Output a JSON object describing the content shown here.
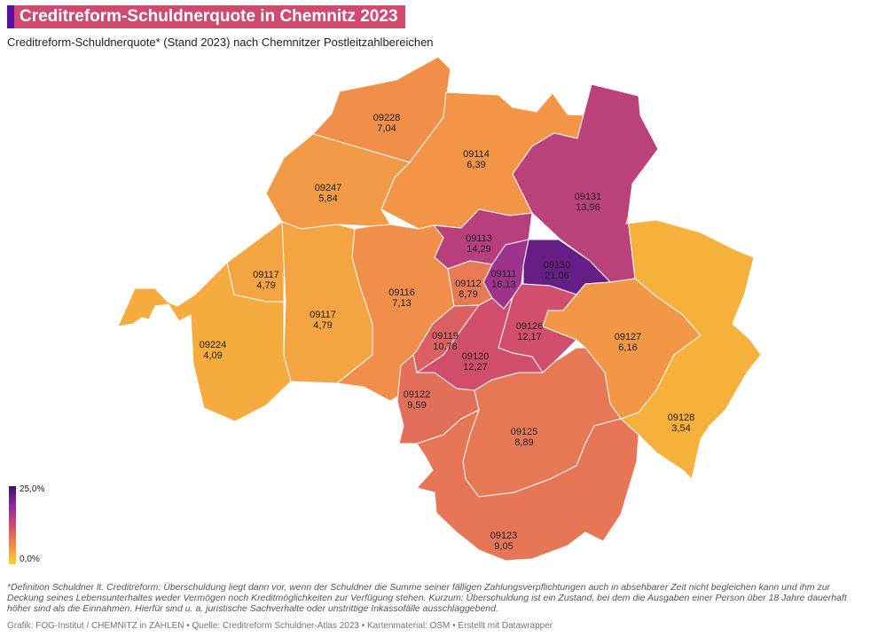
{
  "title": "Creditreform-Schuldnerquote in Chemnitz 2023",
  "subtitle": "Creditreform-Schuldnerquote* (Stand 2023) nach Chemnitzer Postleitzahlbereichen",
  "legend": {
    "max": "25,0%",
    "min": "0,0%"
  },
  "colors": {
    "title_bg": "#cf4a6e",
    "accent": "#5a0fa0"
  },
  "districts": [
    {
      "plz": "09228",
      "value": "7,04"
    },
    {
      "plz": "09114",
      "value": "6,39"
    },
    {
      "plz": "09247",
      "value": "5,84"
    },
    {
      "plz": "09131",
      "value": "13,96"
    },
    {
      "plz": "09113",
      "value": "14,29"
    },
    {
      "plz": "09117",
      "value": "4,79"
    },
    {
      "plz": "09117",
      "value": "4,79"
    },
    {
      "plz": "09116",
      "value": "7,13"
    },
    {
      "plz": "09111",
      "value": "16,13"
    },
    {
      "plz": "09130",
      "value": "21,06"
    },
    {
      "plz": "09112",
      "value": "8,79"
    },
    {
      "plz": "09224",
      "value": "4,09"
    },
    {
      "plz": "09126",
      "value": "12,17"
    },
    {
      "plz": "09127",
      "value": "6,16"
    },
    {
      "plz": "09119",
      "value": "10,78"
    },
    {
      "plz": "09120",
      "value": "12,27"
    },
    {
      "plz": "09122",
      "value": "9,59"
    },
    {
      "plz": "09128",
      "value": "3,54"
    },
    {
      "plz": "09125",
      "value": "8,89"
    },
    {
      "plz": "09123",
      "value": "9,05"
    }
  ],
  "notes": "*Definition Schuldner lt. Creditreform: Überschuldung liegt dann vor, wenn der Schuldner die Summe seiner fälligen Zahlungsverpflichtungen auch in absehbarer Zeit nicht begleichen kann und ihm zur Deckung seines Lebensunterhaltes weder Vermögen noch Kreditmöglichkeiten zur Verfügung stehen. Kurzum: Überschuldung ist ein Zustand, bei dem die Ausgaben einer Person über 18 Jahre dauerhaft höher sind als die Einnahmen. Hierfür sind u. a. juristische Sachverhalte oder unstrittige Inkassofälle ausschlaggebend.",
  "footer": "Grafik: FOG-Institut / CHEMNITZ in ZAHLEN • Quelle: Creditreform Schuldner-Atlas 2023 • Kartenmaterial: OSM • Erstellt mit Datawrapper"
}
